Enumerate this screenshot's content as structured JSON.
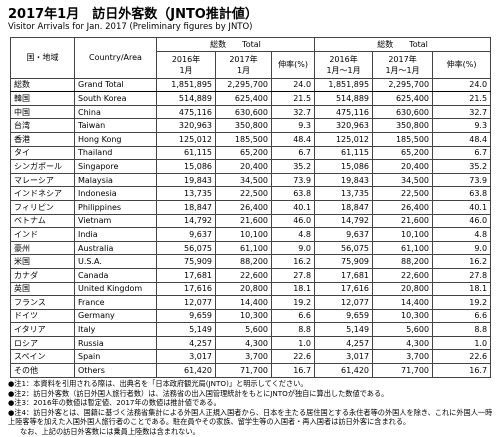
{
  "header": {
    "title": "2017年1月　訪日外客数（JNTO推計値）",
    "subtitle": "Visitor Arrivals for Jan. 2017 (Preliminary figures by JNTO)"
  },
  "table": {
    "columns": [
      "国・地域",
      "Country/Area"
    ],
    "groups": [
      {
        "label": "総数　　Total",
        "cols": [
          [
            "2016年",
            "1月"
          ],
          [
            "2017年",
            "1月"
          ],
          [
            "伸率(%)"
          ]
        ]
      },
      {
        "label": "総数　　Total",
        "cols": [
          [
            "2016年",
            "1月～1月"
          ],
          [
            "2017年",
            "1月～1月"
          ],
          [
            "伸率(%)"
          ]
        ]
      }
    ],
    "rows": [
      [
        "総数",
        "Grand Total",
        "1,851,895",
        "2,295,700",
        "24.0",
        "1,851,895",
        "2,295,700",
        "24.0"
      ],
      [
        "韓国",
        "South Korea",
        "514,889",
        "625,400",
        "21.5",
        "514,889",
        "625,400",
        "21.5"
      ],
      [
        "中国",
        "China",
        "475,116",
        "630,600",
        "32.7",
        "475,116",
        "630,600",
        "32.7"
      ],
      [
        "台湾",
        "Taiwan",
        "320,963",
        "350,800",
        "9.3",
        "320,963",
        "350,800",
        "9.3"
      ],
      [
        "香港",
        "Hong Kong",
        "125,012",
        "185,500",
        "48.4",
        "125,012",
        "185,500",
        "48.4"
      ],
      [
        "タイ",
        "Thailand",
        "61,115",
        "65,200",
        "6.7",
        "61,115",
        "65,200",
        "6.7"
      ],
      [
        "シンガポール",
        "Singapore",
        "15,086",
        "20,400",
        "35.2",
        "15,086",
        "20,400",
        "35.2"
      ],
      [
        "マレーシア",
        "Malaysia",
        "19,843",
        "34,500",
        "73.9",
        "19,843",
        "34,500",
        "73.9"
      ],
      [
        "インドネシア",
        "Indonesia",
        "13,735",
        "22,500",
        "63.8",
        "13,735",
        "22,500",
        "63.8"
      ],
      [
        "フィリピン",
        "Philippines",
        "18,847",
        "26,400",
        "40.1",
        "18,847",
        "26,400",
        "40.1"
      ],
      [
        "ベトナム",
        "Vietnam",
        "14,792",
        "21,600",
        "46.0",
        "14,792",
        "21,600",
        "46.0"
      ],
      [
        "インド",
        "India",
        "9,637",
        "10,100",
        "4.8",
        "9,637",
        "10,100",
        "4.8"
      ],
      [
        "豪州",
        "Australia",
        "56,075",
        "61,100",
        "9.0",
        "56,075",
        "61,100",
        "9.0"
      ],
      [
        "米国",
        "U.S.A.",
        "75,909",
        "88,200",
        "16.2",
        "75,909",
        "88,200",
        "16.2"
      ],
      [
        "カナダ",
        "Canada",
        "17,681",
        "22,600",
        "27.8",
        "17,681",
        "22,600",
        "27.8"
      ],
      [
        "英国",
        "United Kingdom",
        "17,616",
        "20,800",
        "18.1",
        "17,616",
        "20,800",
        "18.1"
      ],
      [
        "フランス",
        "France",
        "12,077",
        "14,400",
        "19.2",
        "12,077",
        "14,400",
        "19.2"
      ],
      [
        "ドイツ",
        "Germany",
        "9,659",
        "10,300",
        "6.6",
        "9,659",
        "10,300",
        "6.6"
      ],
      [
        "イタリア",
        "Italy",
        "5,149",
        "5,600",
        "8.8",
        "5,149",
        "5,600",
        "8.8"
      ],
      [
        "ロシア",
        "Russia",
        "4,257",
        "4,300",
        "1.0",
        "4,257",
        "4,300",
        "1.0"
      ],
      [
        "スペイン",
        "Spain",
        "3,017",
        "3,700",
        "22.6",
        "3,017",
        "3,700",
        "22.6"
      ],
      [
        "その他",
        "Others",
        "61,420",
        "71,700",
        "16.7",
        "61,420",
        "71,700",
        "16.7"
      ]
    ]
  },
  "notes": [
    "●注1：本資料を引用される際は、出典名を「日本政府観光局(JNTO)」と明示してください。",
    "●注2：訪日外客数（訪日外国人旅行者数）は、法務省の出入国管理統計をもとにJNTOが独自に算出した数値である。",
    "●注3：2016年の数値は暫定値、2017年の数値は推計値である。",
    "●注4：訪日外客とは、国籍に基づく法務省集計による外国人正規入国者から、日本を主たる居住国とする永住者等の外国人を除き、これに外国人一時上陸客等を加えた入国外国人旅行者のことである。駐在員やその家族、留学生等の入国者・再入国者は訪日外客に含まれる。",
    "なお、上記の訪日外客数には乗員上陸数は含まれない。"
  ]
}
